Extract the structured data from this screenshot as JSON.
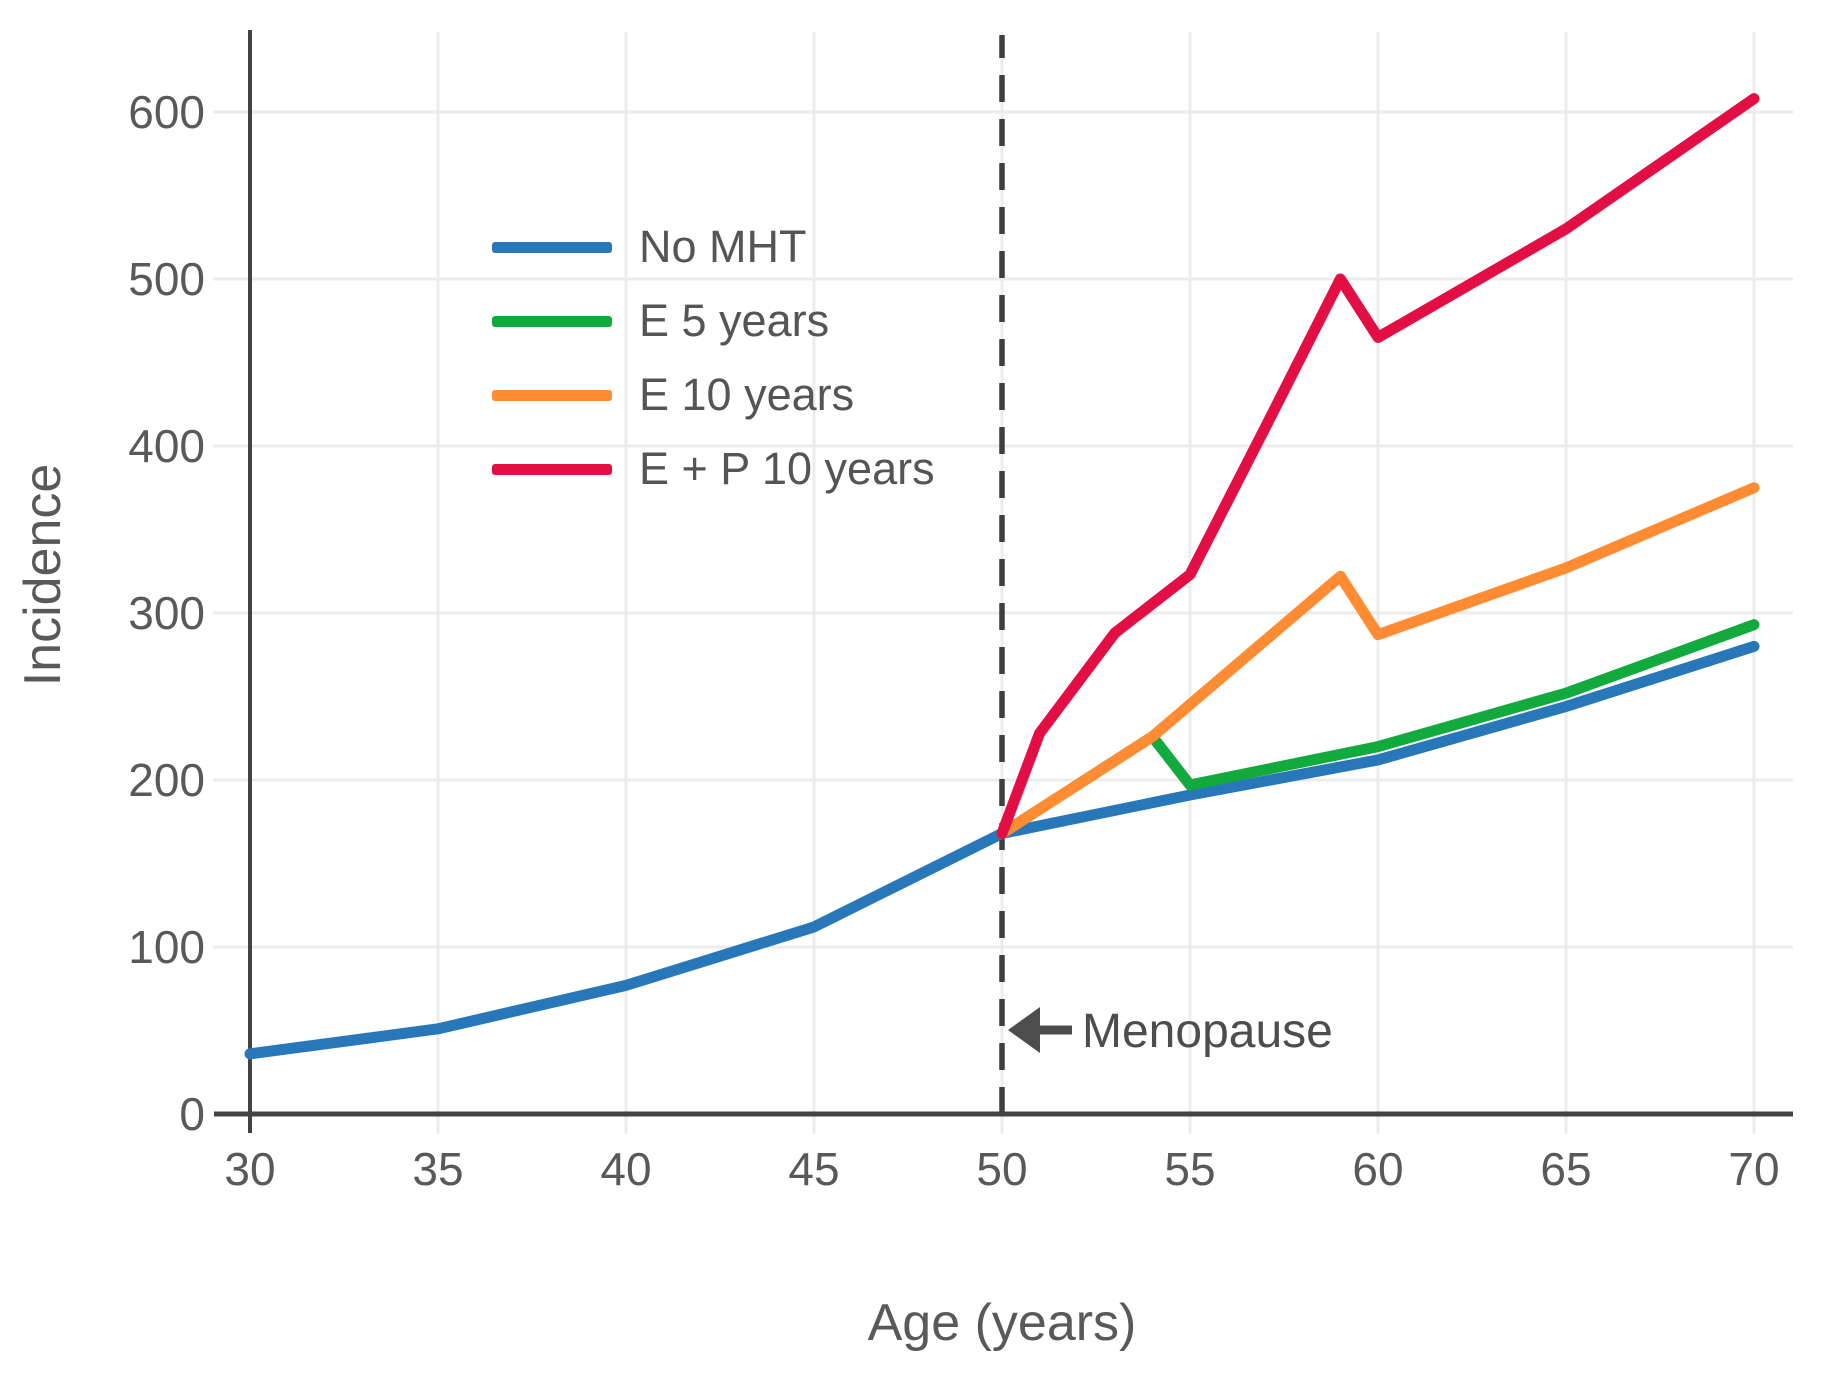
{
  "figure": {
    "background": "#ffffff",
    "grid_color": "#ececec",
    "spine_color": "#434343",
    "tick_text_color": "#595959",
    "annotation_color": "#4d4d4d"
  },
  "chart_data": {
    "type": "line",
    "title": "",
    "xlabel": "Age (years)",
    "ylabel": "Incidence",
    "xlim": [
      30,
      70
    ],
    "ylim": [
      0,
      650
    ],
    "x_ticks": [
      30,
      35,
      40,
      45,
      50,
      55,
      60,
      65,
      70
    ],
    "y_ticks": [
      0,
      100,
      200,
      300,
      400,
      500,
      600
    ],
    "grid": true,
    "legend_position": "upper-left",
    "series": [
      {
        "name": "No MHT",
        "color": "#2878b9",
        "x": [
          30,
          35,
          40,
          45,
          50,
          55,
          60,
          65,
          70
        ],
        "y": [
          36,
          51,
          77,
          112,
          168,
          191,
          212,
          244,
          280
        ]
      },
      {
        "name": "E 5 years",
        "color": "#12aa3d",
        "x": [
          50,
          54,
          55,
          60,
          65,
          70
        ],
        "y": [
          168,
          226,
          197,
          220,
          252,
          293
        ]
      },
      {
        "name": "E 10 years",
        "color": "#ff8c33",
        "x": [
          50,
          54,
          59,
          60,
          65,
          70
        ],
        "y": [
          168,
          226,
          322,
          287,
          327,
          375
        ]
      },
      {
        "name": "E + P 10 years",
        "color": "#e20e44",
        "x": [
          50,
          51,
          53,
          55,
          57,
          59,
          60,
          65,
          70
        ],
        "y": [
          168,
          228,
          288,
          323,
          411,
          500,
          465,
          530,
          608
        ]
      }
    ],
    "annotations": [
      {
        "type": "arrow-label",
        "text": "Menopause",
        "x": 50,
        "y": 50,
        "direction": "left"
      },
      {
        "type": "vline",
        "x": 50,
        "style": "dashed",
        "color": "#3f3f3f"
      }
    ]
  }
}
